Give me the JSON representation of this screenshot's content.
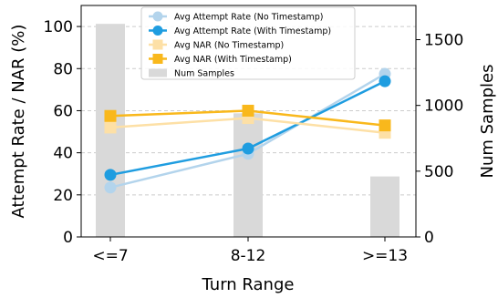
{
  "chart_data": {
    "type": "bar+line",
    "title": "",
    "categories": [
      "<=7",
      "8-12",
      ">=13"
    ],
    "xlabel": "Turn Range",
    "ylabel": "Attempt Rate / NAR (%)",
    "y2label": "Num Samples",
    "ylim": [
      0,
      110
    ],
    "y2lim": [
      0,
      1760
    ],
    "yticks": [
      "0",
      "20",
      "40",
      "60",
      "80",
      "100"
    ],
    "y2ticks": [
      "0",
      "500",
      "1000",
      "1500"
    ],
    "grid": "horizontal dashed",
    "legend_position": "top-center",
    "bars": {
      "name": "Num Samples",
      "values": [
        1620,
        940,
        460
      ],
      "color": "#d9d9d9"
    },
    "series": [
      {
        "name": "Avg Attempt Rate (No Timestamp)",
        "values": [
          23.5,
          39.5,
          77.5
        ],
        "color": "#b3d4ec",
        "marker": "circle"
      },
      {
        "name": "Avg Attempt Rate (With Timestamp)",
        "values": [
          29.5,
          42.0,
          74.0
        ],
        "color": "#1f9de0",
        "marker": "circle"
      },
      {
        "name": "Avg NAR (No Timestamp)",
        "values": [
          52.0,
          56.5,
          49.5
        ],
        "color": "#fde0a6",
        "marker": "square"
      },
      {
        "name": "Avg NAR (With Timestamp)",
        "values": [
          57.5,
          60.0,
          53.0
        ],
        "color": "#f9b81c",
        "marker": "square"
      }
    ]
  }
}
